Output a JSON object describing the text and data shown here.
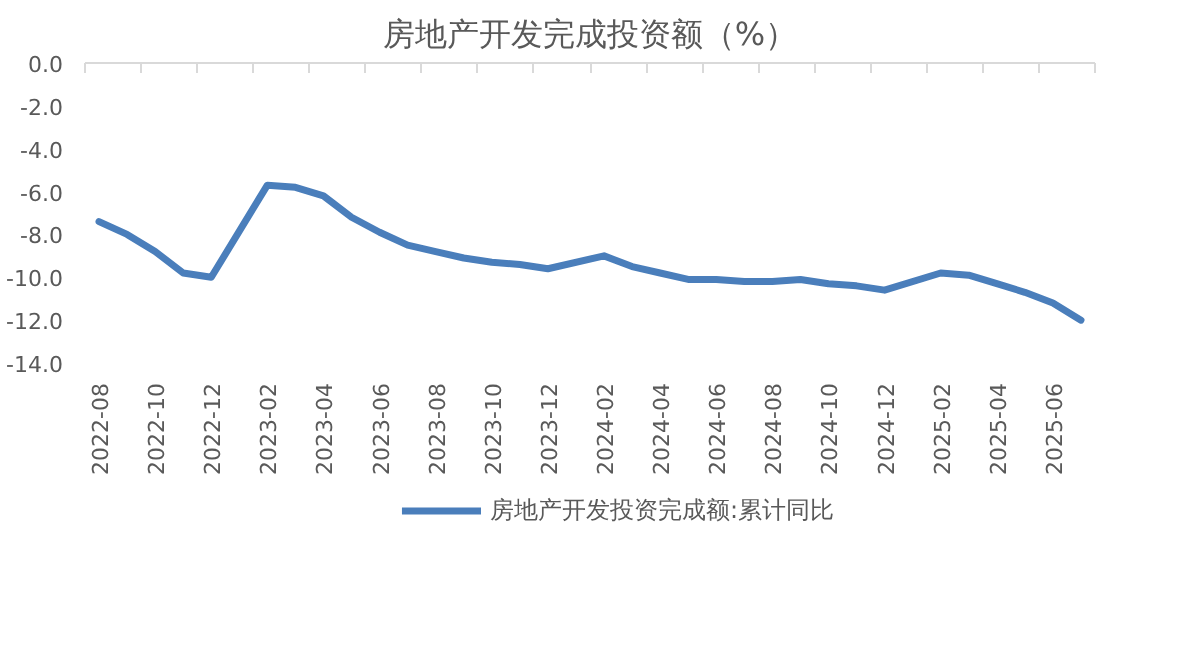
{
  "chart_data": {
    "type": "line",
    "title": "房地产开发完成投资额（%）",
    "x": [
      "2022-08",
      "2022-09",
      "2022-10",
      "2022-11",
      "2022-12",
      "2023-02",
      "2023-03",
      "2023-04",
      "2023-05",
      "2023-06",
      "2023-07",
      "2023-08",
      "2023-09",
      "2023-10",
      "2023-11",
      "2023-12",
      "2024-02",
      "2024-03",
      "2024-04",
      "2024-05",
      "2024-06",
      "2024-07",
      "2024-08",
      "2024-09",
      "2024-10",
      "2024-11",
      "2024-12",
      "2025-02",
      "2025-03",
      "2025-04",
      "2025-05",
      "2025-06",
      "2025-07"
    ],
    "series": [
      {
        "name": "房地产开发投资完成额:累计同比",
        "color": "#4a7ebb",
        "values": [
          -7.4,
          -8.0,
          -8.8,
          -9.8,
          -10.0,
          -5.7,
          -5.8,
          -6.2,
          -7.2,
          -7.9,
          -8.5,
          -8.8,
          -9.1,
          -9.3,
          -9.4,
          -9.6,
          -9.0,
          -9.5,
          -9.8,
          -10.1,
          -10.1,
          -10.2,
          -10.2,
          -10.1,
          -10.3,
          -10.4,
          -10.6,
          -9.8,
          -9.9,
          -10.3,
          -10.7,
          -11.2,
          -12.0
        ]
      }
    ],
    "xlim": [
      "2022-07-16",
      "2025-07-16"
    ],
    "xticks": [
      "2022-08",
      "2022-10",
      "2022-12",
      "2023-02",
      "2023-04",
      "2023-06",
      "2023-08",
      "2023-10",
      "2023-12",
      "2024-02",
      "2024-04",
      "2024-06",
      "2024-08",
      "2024-10",
      "2024-12",
      "2025-02",
      "2025-04",
      "2025-06"
    ],
    "ylim": [
      -14,
      0
    ],
    "yticks": [
      {
        "value": 0,
        "label": "0.0"
      },
      {
        "value": -2,
        "label": "-2.0"
      },
      {
        "value": -4,
        "label": "-4.0"
      },
      {
        "value": -6,
        "label": "-6.0"
      },
      {
        "value": -8,
        "label": "-8.0"
      },
      {
        "value": -10,
        "label": "-10.0"
      },
      {
        "value": -12,
        "label": "-12.0"
      },
      {
        "value": -14,
        "label": "-14.0"
      }
    ],
    "grid": false,
    "marker": "none",
    "legend": "bottom",
    "line_style": "solid"
  }
}
